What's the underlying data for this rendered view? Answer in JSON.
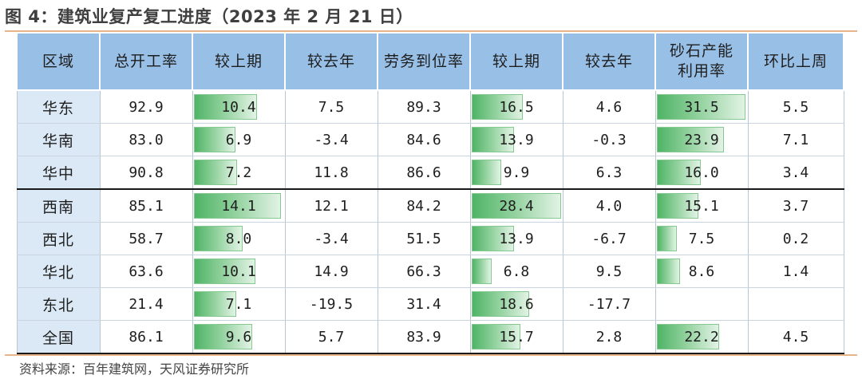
{
  "title": "图 4：建筑业复产复工进度（2023 年 2 月 21 日）",
  "headers": [
    "区域",
    "总开工率",
    "较上期",
    "较去年",
    "劳务到位率",
    "较上期",
    "较去年",
    "砂石产能利用率",
    "环比上周"
  ],
  "header_lines": [
    [
      "区域"
    ],
    [
      "总开工率"
    ],
    [
      "较上期"
    ],
    [
      "较去年"
    ],
    [
      "劳务到位率"
    ],
    [
      "较上期"
    ],
    [
      "较去年"
    ],
    [
      "砂石产能",
      "利用率"
    ],
    [
      "环比上周"
    ]
  ],
  "bar_columns": [
    2,
    5,
    7
  ],
  "bar_max": {
    "2": 14.6,
    "5": 28.6,
    "7": 31.8
  },
  "rows": [
    [
      "华东",
      "92.9",
      "10.4",
      "7.5",
      "89.3",
      "16.5",
      "4.6",
      "31.5",
      "5.5"
    ],
    [
      "华南",
      "83.0",
      "6.9",
      "-3.4",
      "84.6",
      "13.9",
      "-0.3",
      "23.9",
      "7.1"
    ],
    [
      "华中",
      "90.8",
      "7.2",
      "11.8",
      "86.6",
      "9.9",
      "6.3",
      "16.0",
      "3.4"
    ],
    [
      "西南",
      "85.1",
      "14.1",
      "12.1",
      "84.2",
      "28.4",
      "4.0",
      "15.1",
      "3.7"
    ],
    [
      "西北",
      "58.7",
      "8.0",
      "-3.4",
      "51.5",
      "13.9",
      "-6.7",
      "7.5",
      "0.2"
    ],
    [
      "华北",
      "63.6",
      "10.1",
      "14.9",
      "66.3",
      "6.8",
      "9.5",
      "8.6",
      "1.4"
    ],
    [
      "东北",
      "21.4",
      "7.1",
      "-19.5",
      "31.4",
      "18.6",
      "-17.7",
      "",
      ""
    ],
    [
      "全国",
      "86.1",
      "9.6",
      "5.7",
      "83.9",
      "15.7",
      "2.8",
      "22.2",
      "4.5"
    ]
  ],
  "thick_rule_before_row": 3,
  "source": "资料来源：百年建筑网，天风证券研究所",
  "colors": {
    "header_bg": "#98bfe6",
    "region_bg": "#dbe8f5",
    "bar_green": "#4fb466",
    "title_rule": "#e8b48a"
  }
}
